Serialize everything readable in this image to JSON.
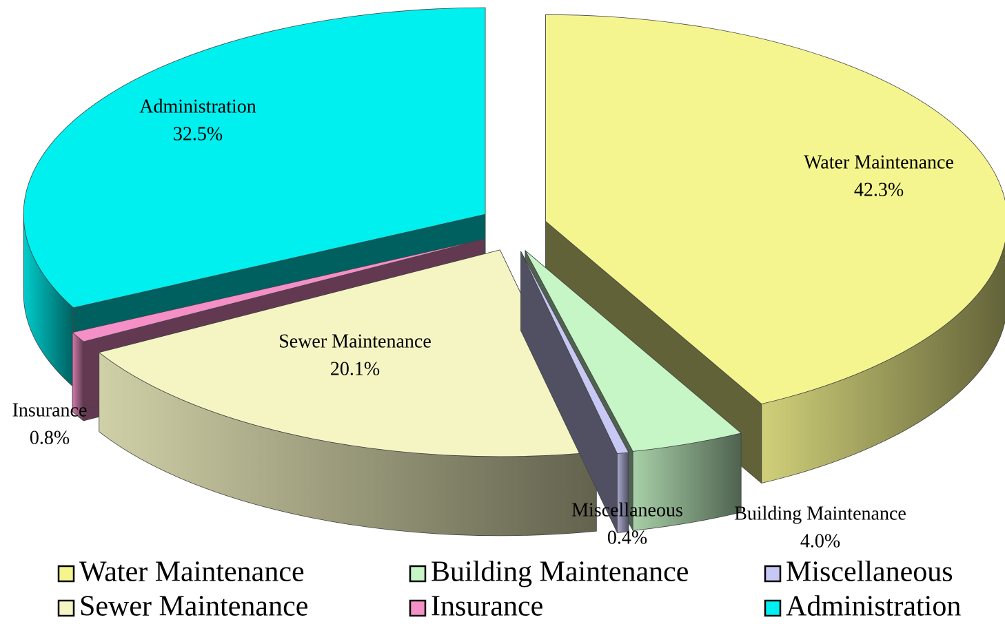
{
  "chart_data": {
    "type": "pie",
    "three_d": true,
    "exploded": true,
    "categories": [
      "Water Maintenance",
      "Building Maintenance",
      "Miscellaneous",
      "Sewer Maintenance",
      "Insurance",
      "Administration"
    ],
    "values": [
      42.3,
      4.0,
      0.4,
      20.1,
      0.8,
      32.5
    ],
    "value_labels": [
      "42.3%",
      "4.0%",
      "0.4%",
      "20.1%",
      "0.8%",
      "32.5%"
    ],
    "colors": [
      "#f5f58f",
      "#c6f5c6",
      "#c8c8f5",
      "#f5f5c4",
      "#f58fc8",
      "#00f0f0"
    ],
    "legend": "bottom"
  }
}
